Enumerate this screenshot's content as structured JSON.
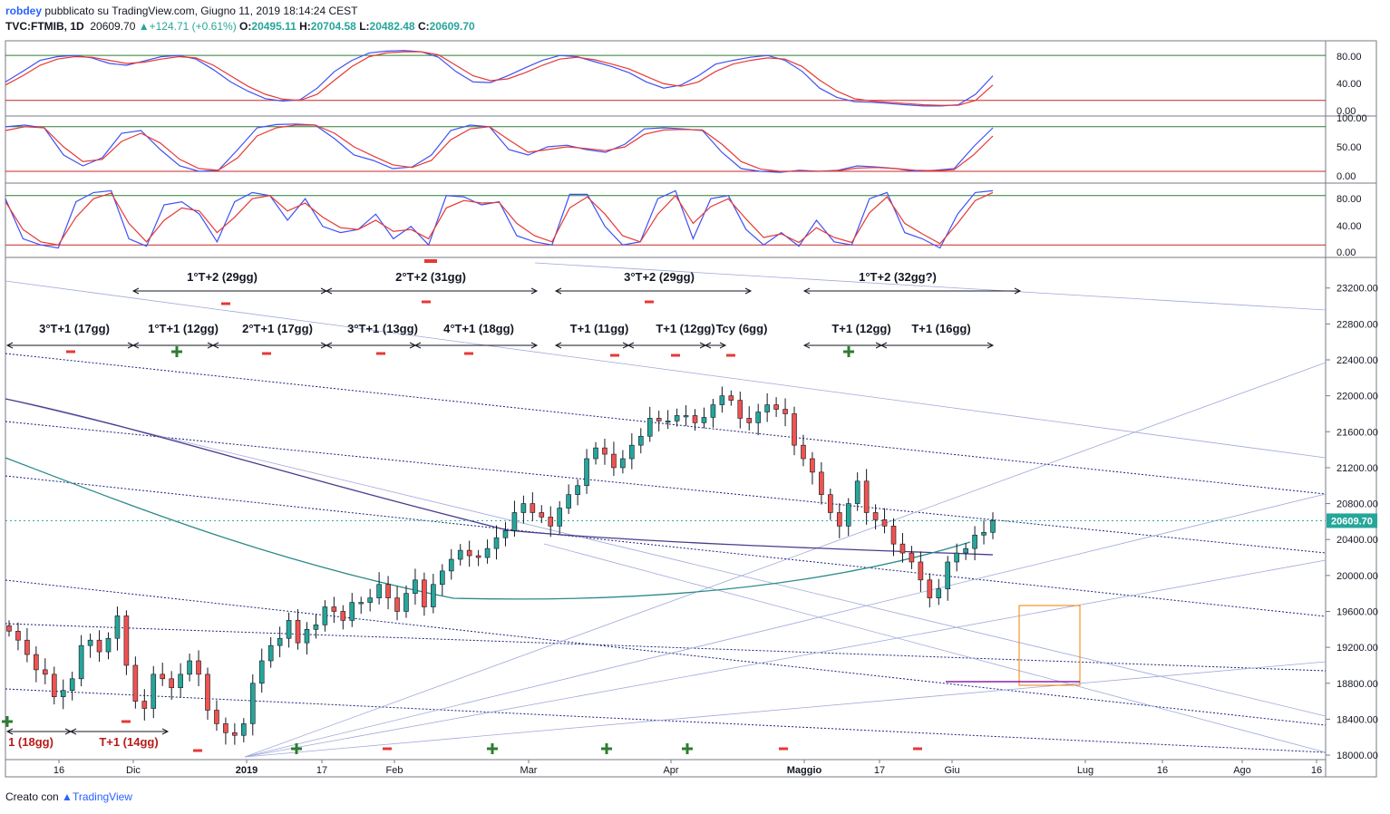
{
  "header": {
    "user": "robdey",
    "published": "pubblicato su TradingView.com, Giugno 11, 2019 18:14:24 CEST",
    "symbol": "TVC:FTMIB, 1D",
    "last": "20609.70",
    "change": "▲+124.71 (+0.61%)",
    "o_label": "O:",
    "o_value": "20495.11",
    "h_label": "H:",
    "h_value": "20704.58",
    "l_label": "L:",
    "l_value": "20482.48",
    "c_label": "C:",
    "c_value": "20609.70"
  },
  "footer": {
    "created": "Creato con",
    "brand": "TradingView"
  },
  "colors": {
    "up": "#26a69a",
    "down": "#ef5350",
    "blue": "#3f51f5",
    "red": "#e53935",
    "green_line": "#2e7d32",
    "red_line": "#c62828",
    "channel": "#1a237e",
    "ma_teal": "#2b8a8a",
    "ma_purple": "#4a3b8c",
    "last_label": "#26a69a"
  },
  "chart_data": [
    {
      "type": "line",
      "panel": "oscillator-1",
      "y_ticks": [
        "80.00",
        "40.00",
        "0.00"
      ],
      "ylim": [
        0,
        100
      ],
      "levels": [
        88,
        15
      ],
      "series": [
        {
          "values": [
            45,
            62,
            80,
            86,
            88,
            84,
            75,
            72,
            79,
            86,
            88,
            82,
            65,
            45,
            30,
            18,
            14,
            16,
            35,
            62,
            80,
            92,
            95,
            96,
            94,
            85,
            62,
            45,
            44,
            55,
            68,
            80,
            88,
            86,
            78,
            70,
            60,
            45,
            35,
            40,
            55,
            74,
            80,
            85,
            88,
            80,
            62,
            35,
            20,
            13,
            12,
            10,
            8,
            6,
            6,
            8,
            25,
            55
          ]
        },
        {
          "values": [
            40,
            55,
            72,
            82,
            86,
            85,
            80,
            75,
            77,
            82,
            86,
            84,
            72,
            55,
            38,
            25,
            17,
            15,
            25,
            48,
            70,
            86,
            92,
            94,
            94,
            89,
            72,
            55,
            47,
            50,
            60,
            72,
            82,
            85,
            81,
            74,
            66,
            54,
            42,
            38,
            45,
            62,
            74,
            80,
            84,
            82,
            70,
            48,
            30,
            18,
            14,
            12,
            10,
            8,
            7,
            7,
            15,
            40
          ]
        }
      ]
    },
    {
      "type": "line",
      "panel": "oscillator-2",
      "y_ticks": [
        "100.00",
        "50.00",
        "0.00"
      ],
      "ylim": [
        0,
        100
      ],
      "levels": [
        92,
        10
      ],
      "series": [
        {
          "values": [
            92,
            95,
            90,
            40,
            20,
            35,
            80,
            85,
            50,
            20,
            10,
            12,
            50,
            90,
            96,
            97,
            95,
            70,
            40,
            30,
            15,
            18,
            40,
            85,
            95,
            92,
            50,
            40,
            55,
            58,
            50,
            45,
            60,
            88,
            90,
            88,
            85,
            45,
            15,
            10,
            8,
            12,
            10,
            12,
            20,
            18,
            15,
            10,
            12,
            15,
            55,
            90
          ]
        },
        {
          "values": [
            85,
            92,
            90,
            55,
            28,
            32,
            65,
            80,
            62,
            32,
            15,
            12,
            35,
            75,
            90,
            95,
            95,
            80,
            55,
            38,
            22,
            17,
            30,
            68,
            88,
            92,
            68,
            45,
            50,
            55,
            52,
            48,
            55,
            78,
            86,
            87,
            86,
            60,
            28,
            14,
            10,
            10,
            10,
            11,
            16,
            17,
            15,
            12,
            11,
            13,
            40,
            75
          ]
        }
      ]
    },
    {
      "type": "line",
      "panel": "oscillator-3",
      "y_ticks": [
        "80.00",
        "40.00",
        "0.00"
      ],
      "ylim": [
        0,
        100
      ],
      "levels": [
        90,
        10
      ],
      "series": [
        {
          "values": [
            85,
            20,
            10,
            5,
            80,
            95,
            98,
            20,
            8,
            75,
            80,
            60,
            15,
            80,
            95,
            90,
            50,
            85,
            40,
            30,
            35,
            60,
            20,
            40,
            10,
            90,
            88,
            75,
            80,
            25,
            15,
            10,
            92,
            92,
            40,
            10,
            15,
            85,
            98,
            20,
            85,
            90,
            35,
            10,
            30,
            8,
            50,
            15,
            10,
            85,
            95,
            30,
            20,
            5,
            60,
            95,
            98
          ]
        },
        {
          "values": [
            80,
            35,
            15,
            10,
            55,
            85,
            94,
            45,
            15,
            50,
            70,
            65,
            30,
            55,
            85,
            90,
            65,
            78,
            55,
            38,
            35,
            50,
            32,
            35,
            20,
            70,
            82,
            78,
            79,
            45,
            25,
            15,
            70,
            88,
            60,
            25,
            15,
            60,
            90,
            45,
            72,
            85,
            52,
            22,
            28,
            14,
            38,
            22,
            14,
            62,
            88,
            45,
            28,
            12,
            45,
            82,
            95
          ]
        }
      ]
    },
    {
      "type": "candlestick",
      "panel": "price",
      "y_ticks": [
        "23200.00",
        "22800.00",
        "22400.00",
        "22000.00",
        "21600.00",
        "21200.00",
        "20800.00",
        "20400.00",
        "20000.00",
        "19600.00",
        "19200.00",
        "18800.00",
        "18400.00",
        "18000.00"
      ],
      "ylim": [
        17950,
        23500
      ],
      "x_ticks": [
        "16",
        "Dic",
        "2019",
        "17",
        "Feb",
        "Mar",
        "Apr",
        "Maggio",
        "17",
        "Giu",
        "Lug",
        "16",
        "Ago",
        "16"
      ],
      "last_price": "20609.70",
      "closes": [
        19380,
        19280,
        19120,
        18950,
        18900,
        18650,
        18720,
        18850,
        19220,
        19280,
        19150,
        19300,
        19550,
        19000,
        18600,
        18520,
        18900,
        18850,
        18750,
        18900,
        19050,
        18900,
        18500,
        18350,
        18250,
        18220,
        18350,
        18800,
        19050,
        19220,
        19300,
        19500,
        19250,
        19400,
        19450,
        19650,
        19600,
        19500,
        19700,
        19700,
        19750,
        19900,
        19750,
        19600,
        19800,
        19950,
        19650,
        19900,
        20050,
        20180,
        20280,
        20220,
        20200,
        20300,
        20420,
        20500,
        20700,
        20800,
        20700,
        20650,
        20550,
        20750,
        20900,
        21000,
        21300,
        21420,
        21350,
        21200,
        21300,
        21450,
        21550,
        21750,
        21720,
        21720,
        21780,
        21780,
        21700,
        21760,
        21900,
        22000,
        21950,
        21750,
        21700,
        21820,
        21900,
        21850,
        21800,
        21450,
        21300,
        21150,
        20900,
        20700,
        20550,
        20800,
        21050,
        20700,
        20620,
        20550,
        20350,
        20250,
        20150,
        19950,
        19750,
        19850,
        20150,
        20250,
        20300,
        20450,
        20480,
        20610
      ]
    }
  ],
  "annotations": {
    "cycles_top": [
      "1°T+2 (29gg)",
      "2°T+2 (31gg)",
      "3°T+2 (29gg)",
      "1°T+2 (32gg?)"
    ],
    "cycles_mid": [
      "3°T+1 (17gg)",
      "1°T+1 (12gg)",
      "2°T+1 (17gg)",
      "3°T+1 (13gg)",
      "4°T+1 (18gg)",
      "T+1 (11gg)",
      "T+1 (12gg)",
      "Tcy (6gg)",
      "T+1 (12gg)",
      "T+1 (16gg)"
    ],
    "cycles_low": [
      "1 (18gg)",
      "T+1 (14gg)"
    ]
  }
}
